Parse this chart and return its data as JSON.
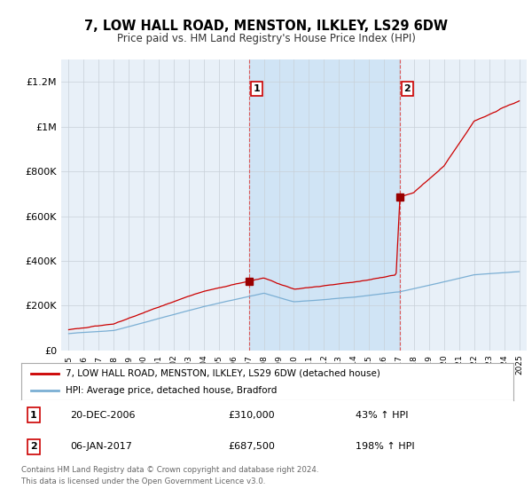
{
  "title": "7, LOW HALL ROAD, MENSTON, ILKLEY, LS29 6DW",
  "subtitle": "Price paid vs. HM Land Registry's House Price Index (HPI)",
  "ylim": [
    0,
    1300000
  ],
  "yticks": [
    0,
    200000,
    400000,
    600000,
    800000,
    1000000,
    1200000
  ],
  "ytick_labels": [
    "£0",
    "£200K",
    "£400K",
    "£600K",
    "£800K",
    "£1M",
    "£1.2M"
  ],
  "bg_color": "#e8f0f8",
  "shade_color": "#d0e4f5",
  "line1_color": "#cc0000",
  "line2_color": "#7bafd4",
  "sale1_date": 2007.0,
  "sale1_price": 310000,
  "sale2_date": 2017.05,
  "sale2_price": 687500,
  "vline_color": "#dd4444",
  "legend_label1": "7, LOW HALL ROAD, MENSTON, ILKLEY, LS29 6DW (detached house)",
  "legend_label2": "HPI: Average price, detached house, Bradford",
  "footer1": "Contains HM Land Registry data © Crown copyright and database right 2024.",
  "footer2": "This data is licensed under the Open Government Licence v3.0.",
  "annotation1_date": "20-DEC-2006",
  "annotation1_price": "£310,000",
  "annotation1_hpi": "43% ↑ HPI",
  "annotation2_date": "06-JAN-2017",
  "annotation2_price": "£687,500",
  "annotation2_hpi": "198% ↑ HPI"
}
